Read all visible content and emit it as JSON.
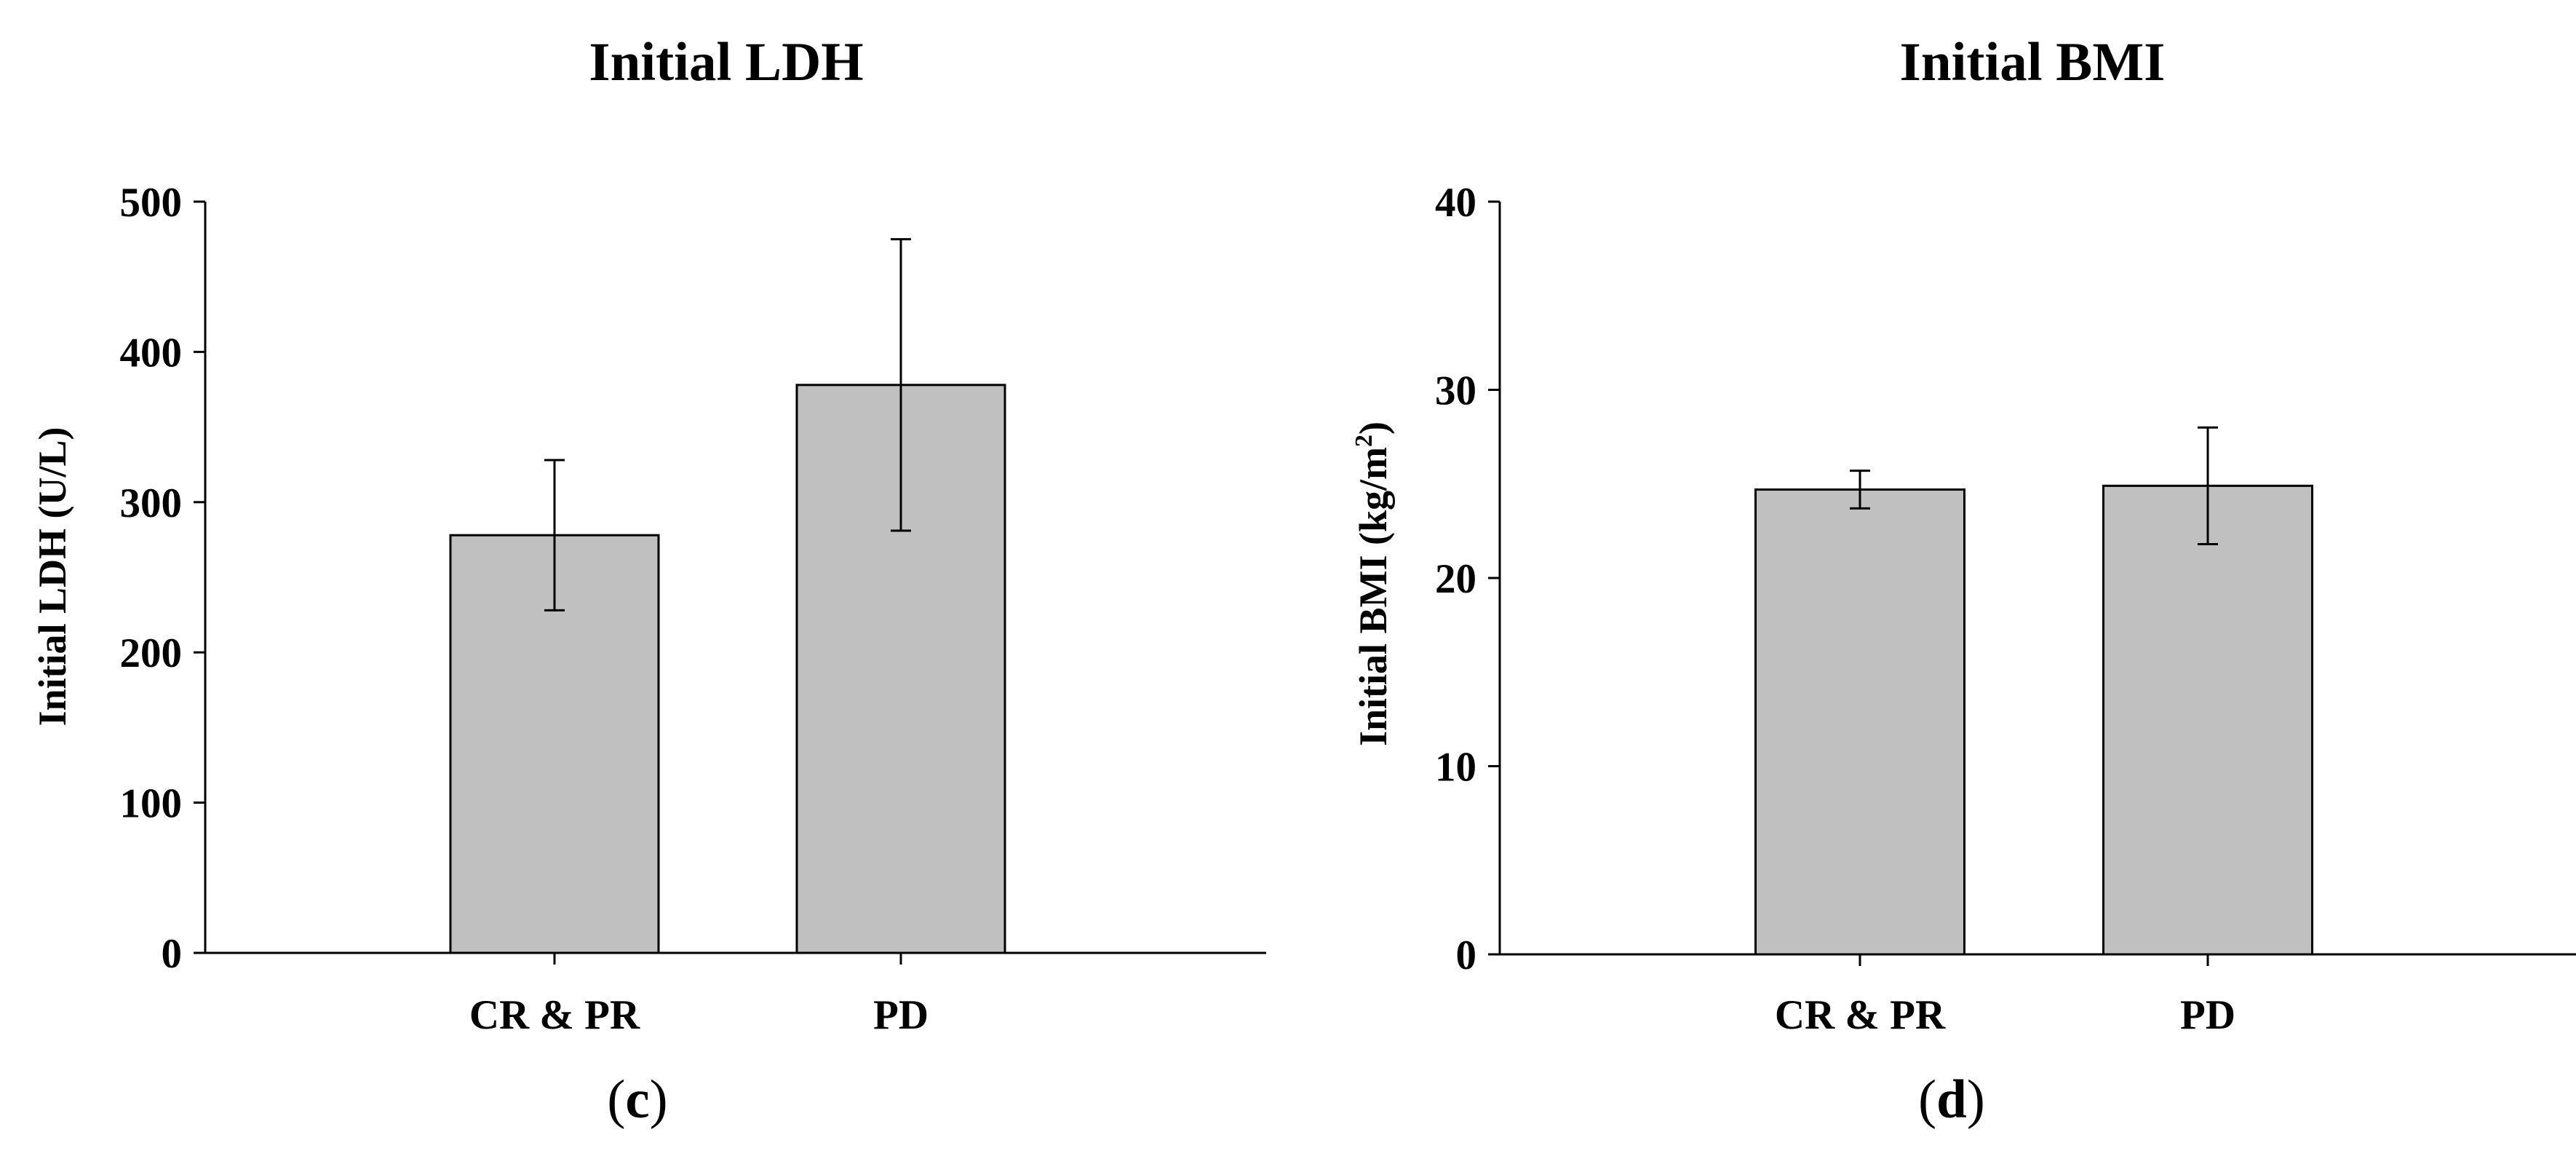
{
  "chart_data": [
    {
      "type": "bar",
      "title": "Initial LDH",
      "ylabel": "Initial LDH (U/L)",
      "xlabel": "",
      "panel_label": {
        "open": "(",
        "letter": "c",
        "close": ")"
      },
      "categories": [
        "CR & PR",
        "PD"
      ],
      "values": [
        278,
        378
      ],
      "errors": [
        50,
        97
      ],
      "ylim": [
        0,
        500
      ],
      "yticks": [
        0,
        100,
        200,
        300,
        400,
        500
      ],
      "grid": false,
      "bar_color": "#c0c0c0"
    },
    {
      "type": "bar",
      "title": "Initial BMI",
      "ylabel": "Initial BMI (kg/m",
      "ylabel_sup": "2",
      "ylabel_close": ")",
      "xlabel": "",
      "panel_label": {
        "open": "(",
        "letter": "d",
        "close": ")"
      },
      "categories": [
        "CR & PR",
        "PD"
      ],
      "values": [
        24.7,
        24.9
      ],
      "errors": [
        1.0,
        3.1
      ],
      "ylim": [
        0,
        40
      ],
      "yticks": [
        0,
        10,
        20,
        30,
        40
      ],
      "grid": false,
      "bar_color": "#c0c0c0"
    }
  ]
}
